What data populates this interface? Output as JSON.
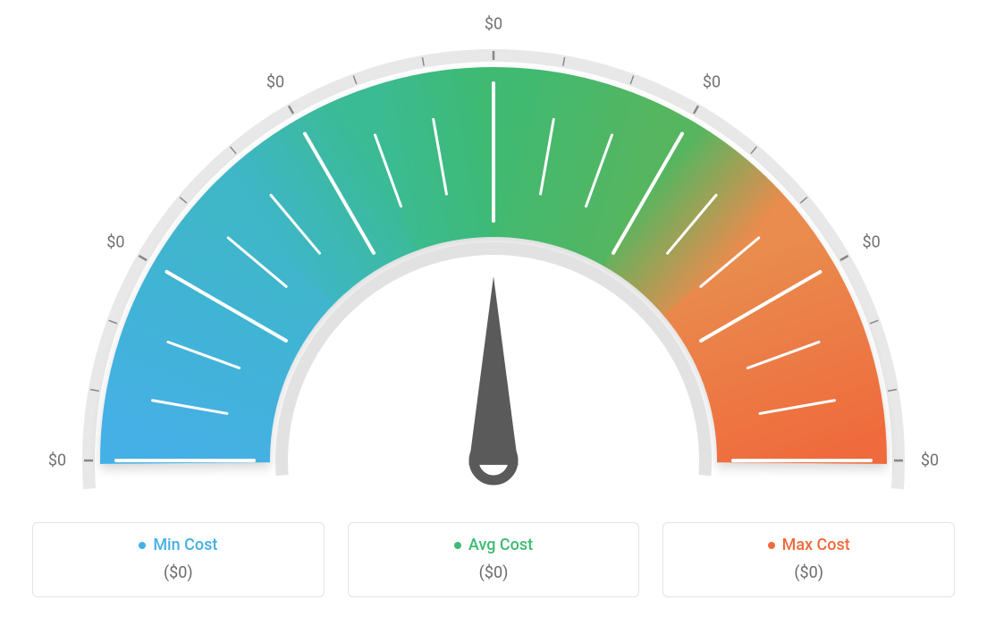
{
  "gauge": {
    "type": "gauge",
    "background_color": "#ffffff",
    "outer_ring_color": "#e8e8e8",
    "inner_ring_color": "#e2e2e2",
    "tick_color_dark": "#888888",
    "tick_color_light": "#ffffff",
    "needle_color": "#5a5a5a",
    "color_stops": [
      {
        "angle": 180,
        "color": "#45b0e6"
      },
      {
        "angle": 135,
        "color": "#3fb6c9"
      },
      {
        "angle": 110,
        "color": "#3abb93"
      },
      {
        "angle": 90,
        "color": "#3fba72"
      },
      {
        "angle": 60,
        "color": "#57b55f"
      },
      {
        "angle": 40,
        "color": "#e98c4e"
      },
      {
        "angle": 0,
        "color": "#ef6b3d"
      }
    ],
    "scale_labels": [
      "$0",
      "$0",
      "$0",
      "$0",
      "$0",
      "$0",
      "$0"
    ],
    "scale_label_color": "#707070",
    "scale_label_fontsize": 18,
    "needle_value_deg": 90,
    "arc_outer_radius": 440,
    "arc_inner_radius": 250,
    "ring_thickness": 14
  },
  "legend": {
    "border_color": "#e3e3e3",
    "border_radius": 6,
    "items": [
      {
        "label": "Min Cost",
        "color": "#45b0e6",
        "value": "($0)"
      },
      {
        "label": "Avg Cost",
        "color": "#3fba72",
        "value": "($0)"
      },
      {
        "label": "Max Cost",
        "color": "#ef6b3d",
        "value": "($0)"
      }
    ],
    "label_fontsize": 18,
    "value_fontsize": 18,
    "value_color": "#6a6a6a"
  }
}
